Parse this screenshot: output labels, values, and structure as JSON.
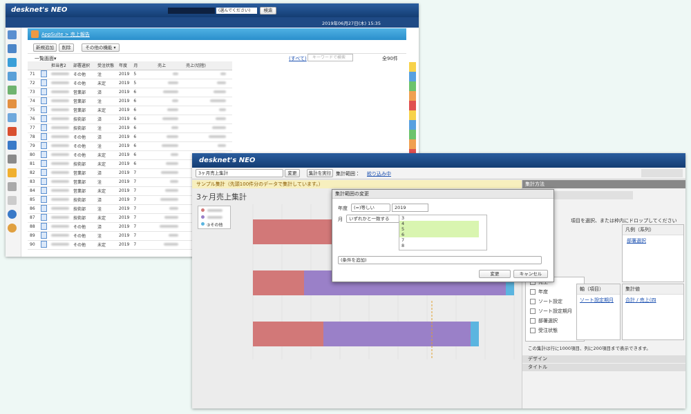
{
  "back_window": {
    "logo": "desknet's NEO",
    "search_select": "(選んでください)",
    "search_button": "検索",
    "datetime": "2019年06月27日(木) 15:35",
    "breadcrumb": "AppSuite > 売上報告",
    "buttons": [
      "新規追加",
      "削除",
      "その他の機能 ▾"
    ],
    "view_select": "一覧画面▾",
    "filter_all": "(すべて)",
    "keyword_placeholder": "キーワードで検索",
    "total": "全90件",
    "table": {
      "columns": [
        "担当者2",
        "部署選択",
        "受注状態",
        "年度",
        "月",
        "売上",
        "売上(切捨)"
      ],
      "rows": [
        [
          "71",
          "その他",
          "注",
          "2019",
          "5"
        ],
        [
          "72",
          "その他",
          "未定",
          "2019",
          "5"
        ],
        [
          "73",
          "営業部",
          "済",
          "2019",
          "6"
        ],
        [
          "74",
          "営業部",
          "注",
          "2019",
          "6"
        ],
        [
          "75",
          "営業部",
          "未定",
          "2019",
          "6"
        ],
        [
          "76",
          "技術部",
          "済",
          "2019",
          "6"
        ],
        [
          "77",
          "技術部",
          "注",
          "2019",
          "6"
        ],
        [
          "78",
          "その他",
          "済",
          "2019",
          "6"
        ],
        [
          "79",
          "その他",
          "注",
          "2019",
          "6"
        ],
        [
          "80",
          "その他",
          "未定",
          "2019",
          "6"
        ],
        [
          "81",
          "技術部",
          "未定",
          "2019",
          "6"
        ],
        [
          "82",
          "営業部",
          "済",
          "2019",
          "7"
        ],
        [
          "83",
          "営業部",
          "注",
          "2019",
          "7"
        ],
        [
          "84",
          "営業部",
          "未定",
          "2019",
          "7"
        ],
        [
          "85",
          "技術部",
          "済",
          "2019",
          "7"
        ],
        [
          "86",
          "技術部",
          "注",
          "2019",
          "7"
        ],
        [
          "87",
          "技術部",
          "未定",
          "2019",
          "7"
        ],
        [
          "88",
          "その他",
          "済",
          "2019",
          "7"
        ],
        [
          "89",
          "その他",
          "注",
          "2019",
          "7"
        ],
        [
          "90",
          "その他",
          "未定",
          "2019",
          "7"
        ]
      ]
    }
  },
  "front_window": {
    "logo": "desknet's NEO",
    "report_select": "3ヶ月売上集計",
    "change_button": "変更",
    "run_button": "集計を実行",
    "range_label": "集計範囲：",
    "filter_link": "絞り込み中",
    "notice": "サンプル集計（先頭100件分のデータで集計しています。）",
    "chart_title": "3ヶ月売上集計",
    "legend_other": "③その他",
    "dialog": {
      "title": "集計範囲の変更",
      "year_label": "年度",
      "year_operator": "(=)等しい",
      "year_value": "2019",
      "month_label": "月",
      "month_operator": "いずれかと一致する",
      "months": [
        "3",
        "4",
        "5",
        "6",
        "7",
        "8"
      ],
      "add_condition": "(条件を追加)",
      "ok": "変更",
      "cancel": "キャンセル"
    },
    "panel": {
      "title": "集計方法",
      "instruction": "項目を選択、または枠内にドロップしてください",
      "legend_box": "凡例（系列）",
      "legend_item": "部署選択",
      "fields": [
        "売上",
        "年度",
        "ソート設定",
        "ソート設定期月",
        "部署選択",
        "受注状態"
      ],
      "axis_box": "軸（項目）",
      "axis_item": "ソート設定期月",
      "value_box": "集計値",
      "value_item": "合計 / 売上(四",
      "note": "この集計は行に1000項目、列に200項目まで表示できます。",
      "design": "デザイン",
      "title_section": "タイトル"
    }
  }
}
